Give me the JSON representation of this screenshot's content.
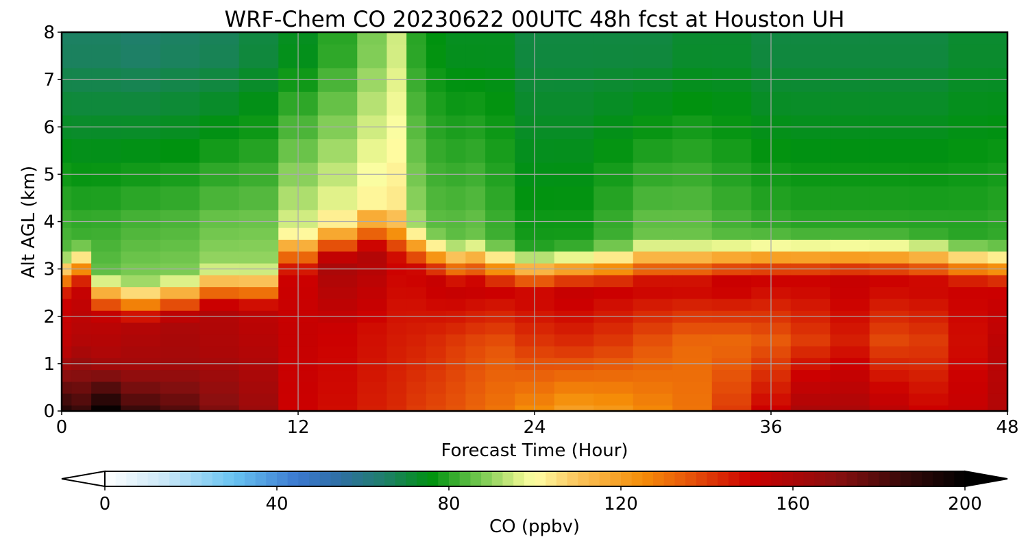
{
  "chart_data": {
    "type": "heatmap",
    "title": "WRF-Chem CO  20230622 00UTC 48h fcst at Houston UH",
    "xlabel": "Forecast Time (Hour)",
    "ylabel": "Alt AGL (km)",
    "xlim": [
      0,
      48
    ],
    "ylim": [
      0,
      8
    ],
    "xticks": [
      "0",
      "12",
      "24",
      "36",
      "48"
    ],
    "yticks": [
      "0",
      "1",
      "2",
      "3",
      "4",
      "5",
      "6",
      "7",
      "8"
    ],
    "grid": true,
    "x": [
      0,
      1,
      2,
      4,
      6,
      8,
      10,
      12,
      14,
      16,
      17,
      18,
      19,
      20,
      21,
      22,
      24,
      26,
      28,
      30,
      32,
      34,
      36,
      38,
      40,
      42,
      44,
      46,
      48
    ],
    "y": [
      0,
      0.25,
      0.5,
      0.75,
      1.0,
      1.25,
      1.5,
      1.75,
      2.0,
      2.25,
      2.5,
      2.75,
      3.0,
      3.25,
      3.5,
      3.75,
      4.0,
      4.5,
      5.0,
      5.5,
      6.0,
      6.5,
      7.0,
      7.5,
      8.0
    ],
    "profile_knots": {
      "pbl_top_km": [
        2.6,
        2.8,
        2.15,
        2.0,
        2.1,
        2.3,
        2.3,
        3.1,
        3.3,
        3.5,
        3.4,
        3.2,
        3.0,
        2.85,
        2.9,
        2.8,
        2.7,
        2.75,
        2.8,
        2.9,
        2.9,
        2.95,
        3.0,
        3.0,
        3.0,
        3.0,
        2.95,
        2.85,
        2.8
      ],
      "surface_ppbv": [
        190,
        185,
        198,
        185,
        180,
        172,
        165,
        150,
        148,
        145,
        143,
        140,
        138,
        136,
        133,
        130,
        125,
        120,
        122,
        126,
        130,
        140,
        150,
        160,
        160,
        155,
        150,
        152,
        158
      ],
      "mid_ppbv": [
        155,
        158,
        160,
        162,
        162,
        160,
        158,
        152,
        150,
        148,
        146,
        145,
        143,
        140,
        138,
        136,
        140,
        142,
        140,
        136,
        132,
        132,
        135,
        140,
        145,
        138,
        140,
        148,
        155
      ],
      "top_ppbv": [
        150,
        152,
        155,
        158,
        160,
        158,
        155,
        150,
        160,
        158,
        150,
        150,
        152,
        152,
        152,
        150,
        150,
        152,
        150,
        150,
        150,
        152,
        150,
        150,
        152,
        150,
        150,
        150,
        150
      ],
      "free_trop_ppbv": [
        84,
        82,
        85,
        88,
        88,
        90,
        90,
        95,
        98,
        102,
        104,
        90,
        85,
        85,
        86,
        82,
        78,
        78,
        82,
        86,
        86,
        83,
        81,
        80,
        80,
        80,
        80,
        80,
        81
      ],
      "upper_ppbv": [
        66,
        66,
        66,
        65,
        66,
        67,
        70,
        74,
        80,
        88,
        95,
        80,
        76,
        74,
        74,
        74,
        70,
        70,
        70,
        70,
        72,
        72,
        70,
        70,
        70,
        70,
        70,
        72,
        72
      ]
    },
    "colorbar": {
      "label": "CO  (ppbv)",
      "min": 0,
      "max": 200,
      "ticks": [
        "0",
        "40",
        "80",
        "120",
        "160",
        "200"
      ],
      "extend": "both",
      "colors": [
        {
          "v": 0,
          "c": "#ffffff"
        },
        {
          "v": 15,
          "c": "#c5e6f7"
        },
        {
          "v": 30,
          "c": "#68c3f2"
        },
        {
          "v": 45,
          "c": "#3a78cf"
        },
        {
          "v": 55,
          "c": "#2f6fa2"
        },
        {
          "v": 65,
          "c": "#1f7f6a"
        },
        {
          "v": 76,
          "c": "#00920f"
        },
        {
          "v": 88,
          "c": "#7ccb54"
        },
        {
          "v": 97,
          "c": "#e8f58e"
        },
        {
          "v": 100,
          "c": "#ffffa6"
        },
        {
          "v": 110,
          "c": "#fac35a"
        },
        {
          "v": 125,
          "c": "#f58d08"
        },
        {
          "v": 135,
          "c": "#e85a0a"
        },
        {
          "v": 150,
          "c": "#cc0000"
        },
        {
          "v": 170,
          "c": "#8a0f0f"
        },
        {
          "v": 185,
          "c": "#3a0a0a"
        },
        {
          "v": 200,
          "c": "#000000"
        }
      ]
    }
  }
}
